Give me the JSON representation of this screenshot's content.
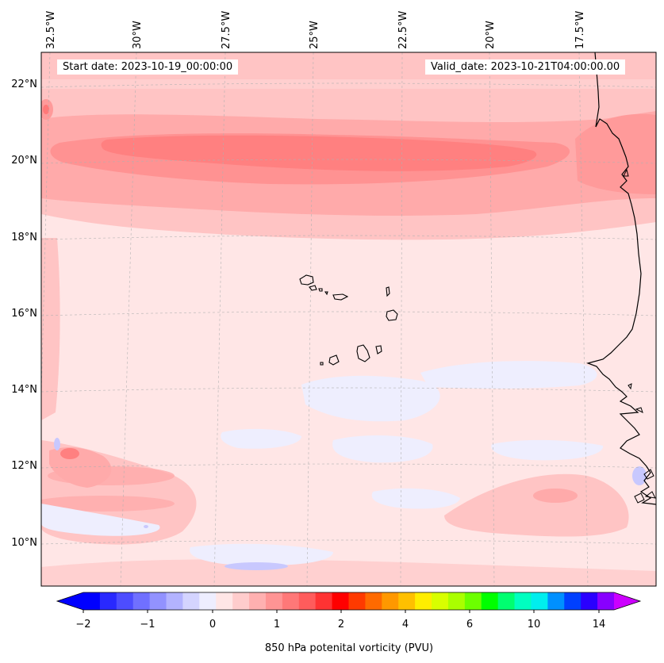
{
  "map": {
    "start_date": "Start date: 2023-10-19_00:00:00",
    "valid_date": "Valid_date: 2023-10-21T04:00:00.00",
    "lon_labels": [
      "32.5°W",
      "30°W",
      "27.5°W",
      "25°W",
      "22.5°W",
      "20°W",
      "17.5°W"
    ],
    "lat_labels": [
      "22°N",
      "20°N",
      "18°N",
      "16°N",
      "14°N",
      "12°N",
      "10°N"
    ],
    "colors": {
      "frame": "#000000",
      "gridline": "#b0b0b0",
      "background_field": "#ffe6e6",
      "light_red": "#ffc4c4",
      "mid_red": "#ff9a9a",
      "strong_red": "#ff8080",
      "light_blue": "#eeeefe",
      "mid_blue": "#c8c8fe"
    }
  },
  "colorbar": {
    "label": "850 hPa potenital vorticity (PVU)",
    "tick_labels": [
      "−2",
      "−1",
      "0",
      "1",
      "2",
      "4",
      "6",
      "10",
      "14"
    ],
    "colors": [
      "#0000ff",
      "#2929ff",
      "#4d4dff",
      "#7070ff",
      "#9292ff",
      "#b3b3ff",
      "#d4d4ff",
      "#eeeeff",
      "#ffe6e6",
      "#ffcccc",
      "#ffb0b0",
      "#ff9494",
      "#ff7878",
      "#ff5c5c",
      "#ff3333",
      "#ff0000",
      "#ff3a00",
      "#ff6a00",
      "#ff9800",
      "#ffc000",
      "#ffee00",
      "#d8ff00",
      "#aaff00",
      "#6cff00",
      "#00ff00",
      "#00ff70",
      "#00ffc0",
      "#00eeee",
      "#0090ff",
      "#0040ff",
      "#2a00ff",
      "#8800ff"
    ],
    "under_color": "#0000ff",
    "over_color": "#cc00ff"
  }
}
